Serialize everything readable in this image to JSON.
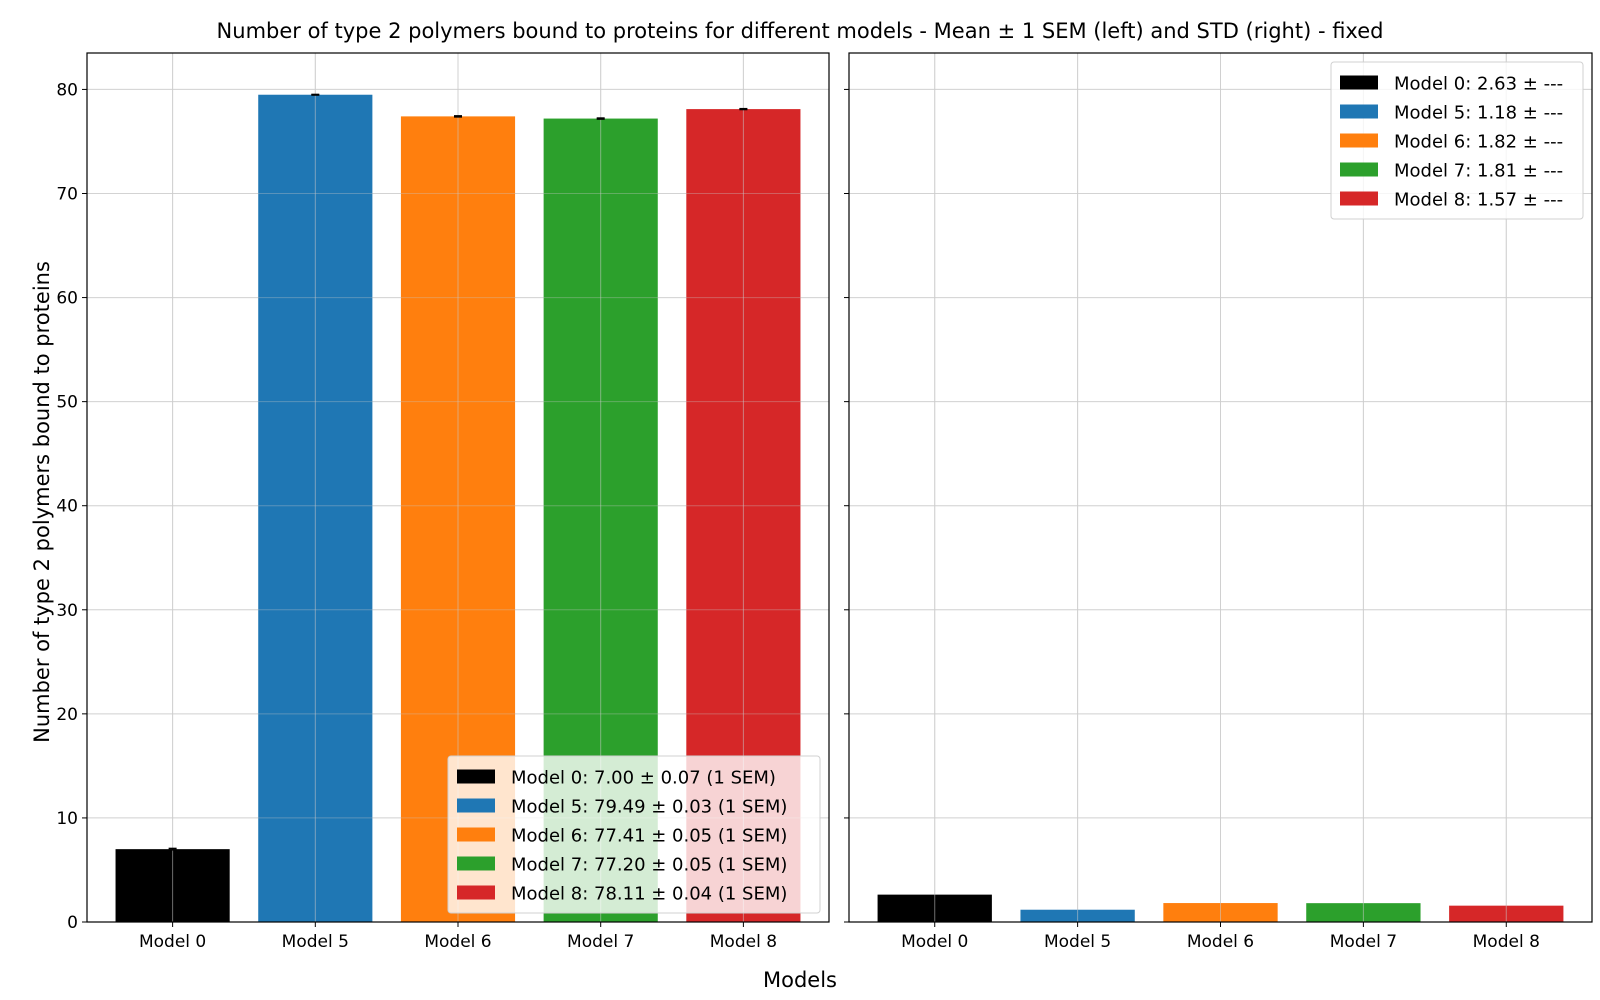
{
  "figure": {
    "title": "Number of type 2 polymers bound to proteins for different models - Mean ± 1 SEM (left) and STD (right) - fixed",
    "xlabel": "Models",
    "ylabel": "Number of type 2 polymers bound to proteins"
  },
  "chart_data": [
    {
      "type": "bar",
      "panel": "left",
      "categories": [
        "Model 0",
        "Model 5",
        "Model 6",
        "Model 7",
        "Model 8"
      ],
      "values": [
        7.0,
        79.49,
        77.41,
        77.2,
        78.11
      ],
      "errors": [
        0.07,
        0.03,
        0.05,
        0.05,
        0.04
      ],
      "colors": [
        "#000000",
        "#1f77b4",
        "#ff7f0e",
        "#2ca02c",
        "#d62728"
      ],
      "legend": [
        "Model 0: 7.00 ± 0.07 (1 SEM)",
        "Model 5: 79.49 ± 0.03 (1 SEM)",
        "Model 6: 77.41 ± 0.05 (1 SEM)",
        "Model 7: 77.20 ± 0.05 (1 SEM)",
        "Model 8: 78.11 ± 0.04 (1 SEM)"
      ],
      "legend_loc": "lower-right",
      "ylim": [
        0,
        83.5
      ],
      "yticks": [
        0,
        10,
        20,
        30,
        40,
        50,
        60,
        70,
        80
      ],
      "grid": true
    },
    {
      "type": "bar",
      "panel": "right",
      "categories": [
        "Model 0",
        "Model 5",
        "Model 6",
        "Model 7",
        "Model 8"
      ],
      "values": [
        2.63,
        1.18,
        1.82,
        1.81,
        1.57
      ],
      "colors": [
        "#000000",
        "#1f77b4",
        "#ff7f0e",
        "#2ca02c",
        "#d62728"
      ],
      "legend": [
        "Model 0: 2.63 ± ---",
        "Model 5: 1.18 ± ---",
        "Model 6: 1.82 ± ---",
        "Model 7: 1.81 ± ---",
        "Model 8: 1.57 ± ---"
      ],
      "legend_loc": "upper-right",
      "ylim": [
        0,
        83.5
      ],
      "yticks": [
        0,
        10,
        20,
        30,
        40,
        50,
        60,
        70,
        80
      ],
      "sharey": true,
      "grid": true
    }
  ]
}
